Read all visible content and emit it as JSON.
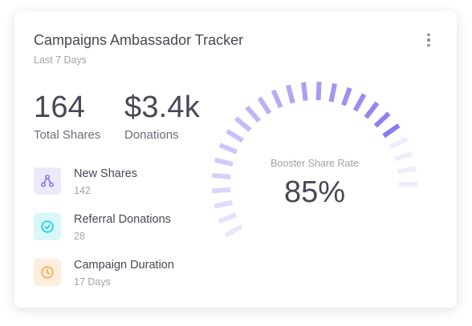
{
  "card": {
    "title": "Campaigns Ambassador Tracker",
    "subtitle": "Last 7 Days",
    "menu_icon": "more-vertical-icon"
  },
  "stats": [
    {
      "value": "164",
      "label": "Total Shares"
    },
    {
      "value": "$3.4k",
      "label": "Donations"
    }
  ],
  "items": [
    {
      "name": "New Shares",
      "value": "142",
      "icon": "share-nodes-icon",
      "color": "#7367f0",
      "bg": "#ebe9fb"
    },
    {
      "name": "Referral Donations",
      "value": "28",
      "icon": "check-circle-icon",
      "color": "#00cfe8",
      "bg": "#d9f6f8"
    },
    {
      "name": "Campaign Duration",
      "value": "17 Days",
      "icon": "clock-icon",
      "color": "#ff9f43",
      "bg": "#fdeedd"
    }
  ],
  "gauge": {
    "label": "Booster Share Rate",
    "value": "85%",
    "percent": 85,
    "color": "#7367f0"
  }
}
